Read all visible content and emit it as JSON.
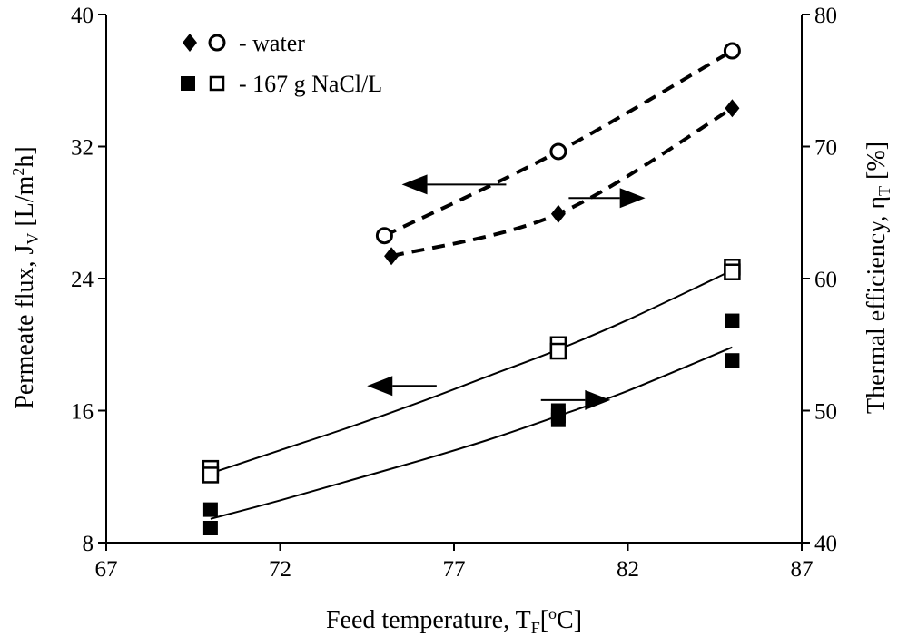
{
  "chart_data": {
    "type": "scatter",
    "x_axis": {
      "label": "Feed temperature, T",
      "label_sub": "F",
      "label_tail_open": "[",
      "label_sup": "o",
      "label_end": "C]",
      "range": [
        67,
        87
      ],
      "ticks": [
        "67",
        "72",
        "77",
        "82",
        "87"
      ]
    },
    "y_axis_left": {
      "label": "Permeate flux, J",
      "label_sub": "V",
      "label_mid": " [L/m",
      "label_sup": "2",
      "label_end": "h]",
      "range": [
        8,
        40
      ],
      "ticks": [
        "8",
        "16",
        "24",
        "32",
        "40"
      ]
    },
    "y_axis_right": {
      "label": "Thermal efficiency, η",
      "label_sub": "T",
      "label_end": " [%]",
      "range": [
        40,
        80
      ],
      "ticks": [
        "40",
        "50",
        "60",
        "70",
        "80"
      ]
    },
    "legend": [
      {
        "text": "- water",
        "markers": [
          "filled-diamond",
          "open-circle"
        ]
      },
      {
        "text": "- 167 g NaCl/L",
        "markers": [
          "filled-square",
          "open-square"
        ]
      }
    ],
    "series": [
      {
        "group": "water",
        "axis": "left",
        "marker": "open-circle",
        "line": "dashed",
        "x": [
          75,
          80,
          85
        ],
        "y": [
          26.6,
          31.7,
          37.8
        ]
      },
      {
        "group": "water",
        "axis": "right",
        "marker": "filled-diamond",
        "line": "dashed",
        "x": [
          75.2,
          80,
          85
        ],
        "y": [
          61.7,
          64.9,
          72.9
        ]
      },
      {
        "group": "NaCl",
        "axis": "left",
        "marker": "open-square",
        "x": [
          70,
          70,
          80,
          80,
          85,
          85
        ],
        "y": [
          12.5,
          12.1,
          20.0,
          19.6,
          24.7,
          24.4
        ]
      },
      {
        "group": "NaCl",
        "axis": "right",
        "marker": "filled-square",
        "x": [
          70,
          70,
          80,
          80,
          80,
          85,
          85
        ],
        "y": [
          42.5,
          41.1,
          50.0,
          49.6,
          49.3,
          56.8,
          53.8
        ]
      }
    ],
    "fit_lines": [
      {
        "axis": "left",
        "style": "solid",
        "x": [
          70,
          72,
          74,
          76,
          78,
          80,
          82,
          85
        ],
        "y": [
          12.2,
          13.6,
          15.0,
          16.5,
          18.1,
          19.7,
          21.5,
          24.5
        ]
      },
      {
        "axis": "right",
        "style": "solid",
        "x": [
          70,
          72,
          74,
          76,
          78,
          80,
          82,
          85
        ],
        "y": [
          41.8,
          43.2,
          44.7,
          46.2,
          47.8,
          49.6,
          51.5,
          54.8
        ]
      }
    ],
    "arrows": [
      {
        "direction": "left",
        "points_to": "left axis",
        "x_from": 78.5,
        "x_to": 75.5,
        "y": 29.7,
        "axis": "left"
      },
      {
        "direction": "right",
        "points_to": "right axis",
        "x_from": 80.3,
        "x_to": 82.5,
        "y": 66.1,
        "axis": "right"
      },
      {
        "direction": "left",
        "points_to": "left axis",
        "x_from": 76.5,
        "x_to": 74.5,
        "y": 17.5,
        "axis": "left"
      },
      {
        "direction": "right",
        "points_to": "right axis",
        "x_from": 79.5,
        "x_to": 81.5,
        "y": 50.8,
        "axis": "right"
      }
    ]
  }
}
